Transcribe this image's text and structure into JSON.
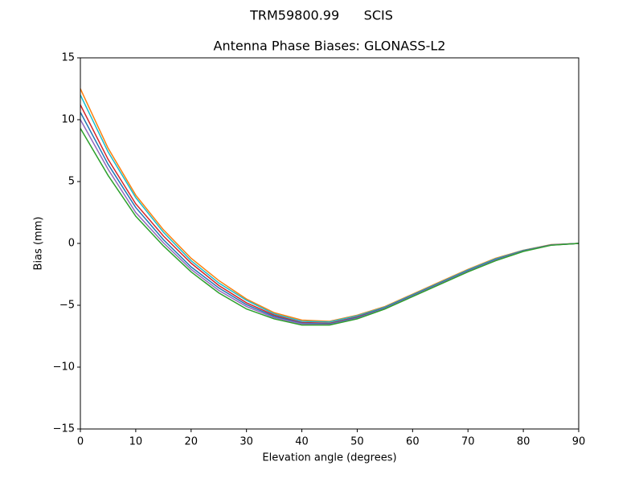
{
  "chart_data": {
    "type": "line",
    "suptitle": "TRM59800.99      SCIS",
    "title": "Antenna Phase Biases: GLONASS-L2",
    "xlabel": "Elevation angle (degrees)",
    "ylabel": "Bias (mm)",
    "x": [
      0,
      5,
      10,
      15,
      20,
      25,
      30,
      35,
      40,
      45,
      50,
      55,
      60,
      65,
      70,
      75,
      80,
      85,
      90
    ],
    "xlim": [
      0,
      90
    ],
    "xticks": [
      0,
      10,
      20,
      30,
      40,
      50,
      60,
      70,
      80,
      90
    ],
    "ylim": [
      -15,
      15
    ],
    "yticks": [
      {
        "value": -15,
        "label": "−15"
      },
      {
        "value": -10,
        "label": "−10"
      },
      {
        "value": -5,
        "label": "−5"
      },
      0,
      5,
      10,
      15
    ],
    "grid": false,
    "series": [
      {
        "color": "#ff7f0e",
        "values": [
          12.5,
          7.7,
          3.9,
          1.1,
          -1.2,
          -3.0,
          -4.5,
          -5.6,
          -6.2,
          -6.3,
          -5.8,
          -5.1,
          -4.1,
          -3.1,
          -2.1,
          -1.2,
          -0.55,
          -0.1,
          0
        ]
      },
      {
        "color": "#17becf",
        "values": [
          12.0,
          7.4,
          3.7,
          0.9,
          -1.4,
          -3.2,
          -4.6,
          -5.7,
          -6.3,
          -6.35,
          -5.85,
          -5.15,
          -4.15,
          -3.15,
          -2.15,
          -1.25,
          -0.57,
          -0.11,
          0
        ]
      },
      {
        "color": "#d62728",
        "values": [
          11.2,
          6.8,
          3.2,
          0.6,
          -1.6,
          -3.4,
          -4.8,
          -5.8,
          -6.4,
          -6.45,
          -5.95,
          -5.2,
          -4.2,
          -3.2,
          -2.2,
          -1.3,
          -0.6,
          -0.12,
          0
        ]
      },
      {
        "color": "#1f77b4",
        "values": [
          10.6,
          6.4,
          2.9,
          0.3,
          -1.9,
          -3.6,
          -4.95,
          -5.9,
          -6.45,
          -6.5,
          -6.0,
          -5.2,
          -4.2,
          -3.2,
          -2.2,
          -1.3,
          -0.6,
          -0.13,
          0
        ]
      },
      {
        "color": "#9467bd",
        "values": [
          10.0,
          6.0,
          2.5,
          0.05,
          -2.1,
          -3.8,
          -5.1,
          -6.0,
          -6.5,
          -6.55,
          -6.05,
          -5.25,
          -4.25,
          -3.25,
          -2.25,
          -1.35,
          -0.62,
          -0.14,
          0
        ]
      },
      {
        "color": "#2ca02c",
        "values": [
          9.3,
          5.5,
          2.2,
          -0.2,
          -2.3,
          -4.0,
          -5.3,
          -6.1,
          -6.6,
          -6.6,
          -6.1,
          -5.3,
          -4.3,
          -3.3,
          -2.3,
          -1.4,
          -0.65,
          -0.15,
          0
        ]
      }
    ]
  }
}
